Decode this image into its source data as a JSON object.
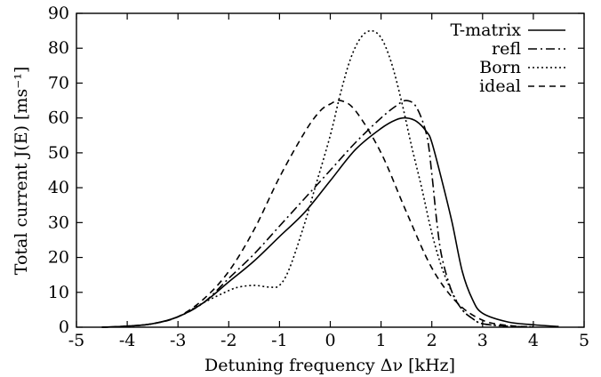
{
  "chart_data": {
    "type": "line",
    "title": "",
    "xlabel": "Detuning frequency Δν [kHz]",
    "ylabel": "Total current J(E) [ms⁻¹]",
    "xlim": [
      -5,
      5
    ],
    "ylim": [
      0,
      90
    ],
    "xticks": [
      "-5",
      "-4",
      "-3",
      "-2",
      "-1",
      "0",
      "1",
      "2",
      "3",
      "4",
      "5"
    ],
    "yticks": [
      "0",
      "10",
      "20",
      "30",
      "40",
      "50",
      "60",
      "70",
      "80",
      "90"
    ],
    "grid": false,
    "legend_position": "top-right",
    "series": [
      {
        "name": "T-matrix",
        "dash": "solid",
        "x": [
          -4.5,
          -4.0,
          -3.5,
          -3.0,
          -2.5,
          -2.0,
          -1.5,
          -1.0,
          -0.5,
          0.0,
          0.5,
          1.0,
          1.3,
          1.5,
          1.7,
          1.9,
          2.0,
          2.2,
          2.4,
          2.6,
          2.8,
          3.0,
          3.5,
          4.0,
          4.5
        ],
        "y": [
          0.0,
          0.3,
          1.0,
          3.0,
          7.0,
          13.0,
          19.0,
          26.0,
          33.0,
          42.0,
          51.0,
          57.0,
          59.5,
          60.0,
          59.0,
          56.0,
          53.0,
          42.0,
          30.0,
          16.0,
          8.0,
          4.0,
          1.5,
          0.7,
          0.2
        ]
      },
      {
        "name": "refl",
        "dash": "dashdot",
        "x": [
          -4.5,
          -4.0,
          -3.5,
          -3.0,
          -2.5,
          -2.0,
          -1.5,
          -1.0,
          -0.5,
          0.0,
          0.5,
          1.0,
          1.3,
          1.5,
          1.7,
          1.9,
          2.0,
          2.1,
          2.2,
          2.4,
          2.6,
          2.8,
          3.0,
          3.5,
          4.0
        ],
        "y": [
          0.0,
          0.3,
          1.0,
          3.0,
          7.0,
          14.0,
          21.0,
          29.0,
          37.0,
          45.0,
          53.0,
          60.0,
          63.5,
          65.0,
          63.0,
          55.0,
          44.0,
          30.0,
          20.0,
          10.0,
          5.0,
          2.5,
          1.0,
          0.3,
          0.1
        ]
      },
      {
        "name": "Born",
        "dash": "dotted",
        "x": [
          -4.5,
          -4.0,
          -3.5,
          -3.0,
          -2.5,
          -2.0,
          -1.8,
          -1.5,
          -1.2,
          -1.0,
          -0.8,
          -0.5,
          -0.3,
          0.0,
          0.2,
          0.4,
          0.6,
          0.8,
          1.0,
          1.2,
          1.4,
          1.6,
          1.8,
          2.0,
          2.2,
          2.4,
          2.6,
          2.8,
          3.0,
          3.5
        ],
        "y": [
          0.0,
          0.3,
          1.0,
          3.0,
          7.0,
          10.5,
          11.5,
          12.0,
          11.5,
          12.0,
          17.0,
          30.0,
          40.0,
          55.0,
          67.0,
          77.0,
          83.0,
          85.0,
          83.0,
          76.0,
          65.0,
          52.0,
          40.0,
          27.0,
          17.0,
          10.0,
          5.0,
          2.5,
          1.0,
          0.2
        ]
      },
      {
        "name": "ideal",
        "dash": "dashed",
        "x": [
          -4.5,
          -4.0,
          -3.5,
          -3.0,
          -2.5,
          -2.0,
          -1.5,
          -1.0,
          -0.5,
          -0.2,
          0.0,
          0.2,
          0.5,
          1.0,
          1.5,
          2.0,
          2.5,
          3.0,
          3.5,
          4.0
        ],
        "y": [
          0.0,
          0.3,
          1.0,
          3.0,
          8.0,
          16.0,
          28.0,
          43.0,
          56.0,
          62.0,
          64.0,
          65.0,
          62.0,
          50.0,
          33.0,
          17.0,
          7.0,
          2.0,
          0.5,
          0.1
        ]
      }
    ]
  }
}
